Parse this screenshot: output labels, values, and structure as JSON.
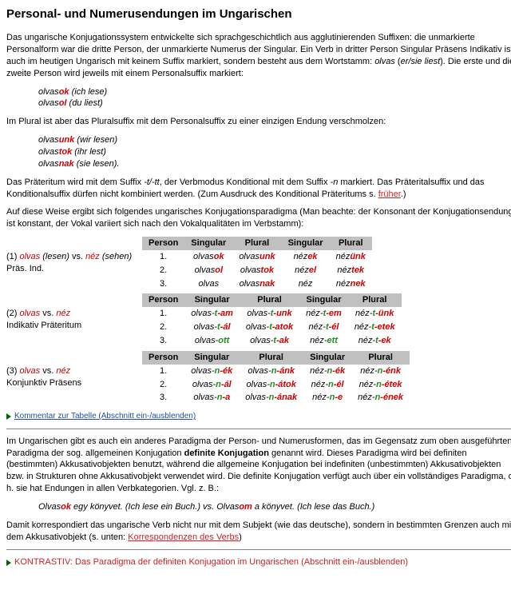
{
  "title": "Personal- und Numerusendungen im Ungarischen",
  "para1_a": "Das ungarische Konjugationssystem entwickelte sich sprachgeschichtlich aus agglutinierenden Suffixen: die unmarkierte Personalform war die dritte Person, der unmarkierte Numerus der Singular. Ein Verb in dritter Person Singular Präsens Indikativ ist auch im heutigen Ungarisch mit keinem Suffix markiert, sondern besteht aus dem Wortstamm: ",
  "para1_olvas": "olvas",
  "para1_b": " (",
  "para1_gloss": "er/sie liest",
  "para1_c": "). Die erste und die zweite Person wird jeweils mit einem Personalsuffix markiert:",
  "ex1": {
    "l1_stem": "olvas",
    "l1_suf": "ok",
    "l1_gl": " (ich lese)",
    "l2_stem": "olvas",
    "l2_suf": "ol",
    "l2_gl": " (du liest)"
  },
  "para2": "Im Plural ist aber das Pluralsuffix mit dem Personalsuffix zu einer einzigen Endung verschmolzen:",
  "ex2": {
    "l1_stem": "olvas",
    "l1_suf": "unk",
    "l1_gl": " (wir lesen)",
    "l2_stem": "olvas",
    "l2_suf": "tok",
    "l2_gl": " (ihr lest)",
    "l3_stem": "olvas",
    "l3_suf": "nak",
    "l3_gl": " (sie lesen)."
  },
  "para3_a": "Das Präteritum wird mit dem Suffix ",
  "para3_suf1": "-t/-tt",
  "para3_b": ", der Verbmodus Konditional mit dem Suffix ",
  "para3_suf2": "-n",
  "para3_c": " markiert. Das Präteritalsuffix und das Konditionalsuffix dürfen nicht kombiniert werden. (Zum Ausdruck des Konditional Präteritums s. ",
  "para3_link": "früher",
  "para3_d": ".)",
  "para4": "Auf diese Weise ergibt sich folgendes ungarisches Konjugationsparadigma (Man beachte: der Konsonant der Konjugationsendung ist konstant, der Vokal variiert sich nach den Vokalqualitäten im Verbstamm):",
  "headers": {
    "person": "Person",
    "sg": "Singular",
    "pl": "Plural"
  },
  "t1": {
    "label_num": "(1) ",
    "v1": "olvas",
    "gl1": " (lesen) ",
    "vs": "vs. ",
    "v2": "néz",
    "gl2": " (sehen)",
    "sub": "Präs. Ind.",
    "rows": [
      {
        "p": "1.",
        "sg_s": "olvas",
        "sg_e": "ok",
        "pl_s": "olvas",
        "pl_e": "unk",
        "sg2_s": "néz",
        "sg2_e": "ek",
        "pl2_s": "néz",
        "pl2_e": "ünk"
      },
      {
        "p": "2.",
        "sg_s": "olvas",
        "sg_e": "ol",
        "pl_s": "olvas",
        "pl_e": "tok",
        "sg2_s": "néz",
        "sg2_e": "el",
        "pl2_s": "néz",
        "pl2_e": "tek"
      },
      {
        "p": "3.",
        "sg_s": "olvas",
        "sg_e": "",
        "pl_s": "olvas",
        "pl_e": "nak",
        "sg2_s": "néz",
        "sg2_e": "",
        "pl2_s": "néz",
        "pl2_e": "nek"
      }
    ]
  },
  "t2": {
    "label_num": "(2) ",
    "v1": "olvas",
    "vs": " vs. ",
    "v2": "néz",
    "sub": "Indikativ Präteritum",
    "rows": [
      {
        "p": "1.",
        "sg_s": "olvas-",
        "sg_m": "t",
        "sg_e": "-am",
        "pl_s": "olvas-",
        "pl_m": "t",
        "pl_e": "-unk",
        "sg2_s": "néz-",
        "sg2_m": "t",
        "sg2_e": "-em",
        "pl2_s": "néz-",
        "pl2_m": "t",
        "pl2_e": "-ünk"
      },
      {
        "p": "2.",
        "sg_s": "olvas-",
        "sg_m": "t",
        "sg_e": "-ál",
        "pl_s": "olvas-",
        "pl_m": "t",
        "pl_e": "-atok",
        "sg2_s": "néz-",
        "sg2_m": "t",
        "sg2_e": "-él",
        "pl2_s": "néz-",
        "pl2_m": "t",
        "pl2_e": "-etek"
      },
      {
        "p": "3.",
        "sg_s": "olvas-",
        "sg_m": "ott",
        "sg_e": "",
        "pl_s": "olvas-",
        "pl_m": "t",
        "pl_e": "-ak",
        "sg2_s": "néz-",
        "sg2_m": "ett",
        "sg2_e": "",
        "pl2_s": "néz-",
        "pl2_m": "t",
        "pl2_e": "-ek"
      }
    ]
  },
  "t3": {
    "label_num": "(3) ",
    "v1": "olvas",
    "vs": " vs. ",
    "v2": "néz",
    "sub": "Konjunktiv Präsens",
    "rows": [
      {
        "p": "1.",
        "sg_s": "olvas-",
        "sg_m": "n",
        "sg_e": "-ék",
        "pl_s": "olvas-",
        "pl_m": "n",
        "pl_e": "-ánk",
        "sg2_s": "néz-",
        "sg2_m": "n",
        "sg2_e": "-ék",
        "pl2_s": "néz-",
        "pl2_m": "n",
        "pl2_e": "-énk"
      },
      {
        "p": "2.",
        "sg_s": "olvas-",
        "sg_m": "n",
        "sg_e": "-ál",
        "pl_s": "olvas-",
        "pl_m": "n",
        "pl_e": "-átok",
        "sg2_s": "néz-",
        "sg2_m": "n",
        "sg2_e": "-él",
        "pl2_s": "néz-",
        "pl2_m": "n",
        "pl2_e": "-étek"
      },
      {
        "p": "3.",
        "sg_s": "olvas-",
        "sg_m": "n",
        "sg_e": "-a",
        "pl_s": "olvas-",
        "pl_m": "n",
        "pl_e": "-ának",
        "sg2_s": "néz-",
        "sg2_m": "n",
        "sg2_e": "-e",
        "pl2_s": "néz-",
        "pl2_m": "n",
        "pl2_e": "-ének"
      }
    ]
  },
  "toggle1": "Kommentar zur Tabelle (Abschnitt ein-/ausblenden)",
  "para5_a": "Im Ungarischen gibt es auch ein anderes Paradigma der Person- und Numerusformen, das im Gegensatz zum oben ausgeführten Paradigma der sog. allgemeinen Konjugation ",
  "para5_b": "definite Konjugation",
  "para5_c": " genannt wird. Dieses Paradigma wird bei definiten (bestimmten) Akkusativobjekten benutzt, während die allgemeine Konjugation bei indefiniten (unbestimmten) Akkusativobjekten bzw. in Strukturen ohne Akkusativobjekt verwendet wird. Die definite Konjugation verfügt auch über ein vollständiges Paradigma, d. h. sie hat Endungen in allen Verbkategorien. Vgl. z. B.:",
  "ex3": {
    "a_s": "Olvas",
    "a_e": "ok",
    "a_m": " egy könyvet. (",
    "a_g": "Ich lese ein Buch.",
    "a_c": ") vs. ",
    "b_s": "Olvas",
    "b_e": "om",
    "b_m": " a könyvet. (",
    "b_g": "Ich lese das Buch.",
    "b_c": ")"
  },
  "para6_a": "Damit korrespondiert das ungarische Verb nicht nur mit dem Subjekt (wie das deutsche), sondern in bestimmten Grenzen auch mit dem Akkusativobjekt (s. unten: ",
  "para6_link": "Korrespondenzen des Verbs",
  "para6_b": ")",
  "kontrastiv": "KONTRASTIV: Das Paradigma der definiten Konjugation im Ungarischen (Abschnitt ein-/ausblenden)"
}
